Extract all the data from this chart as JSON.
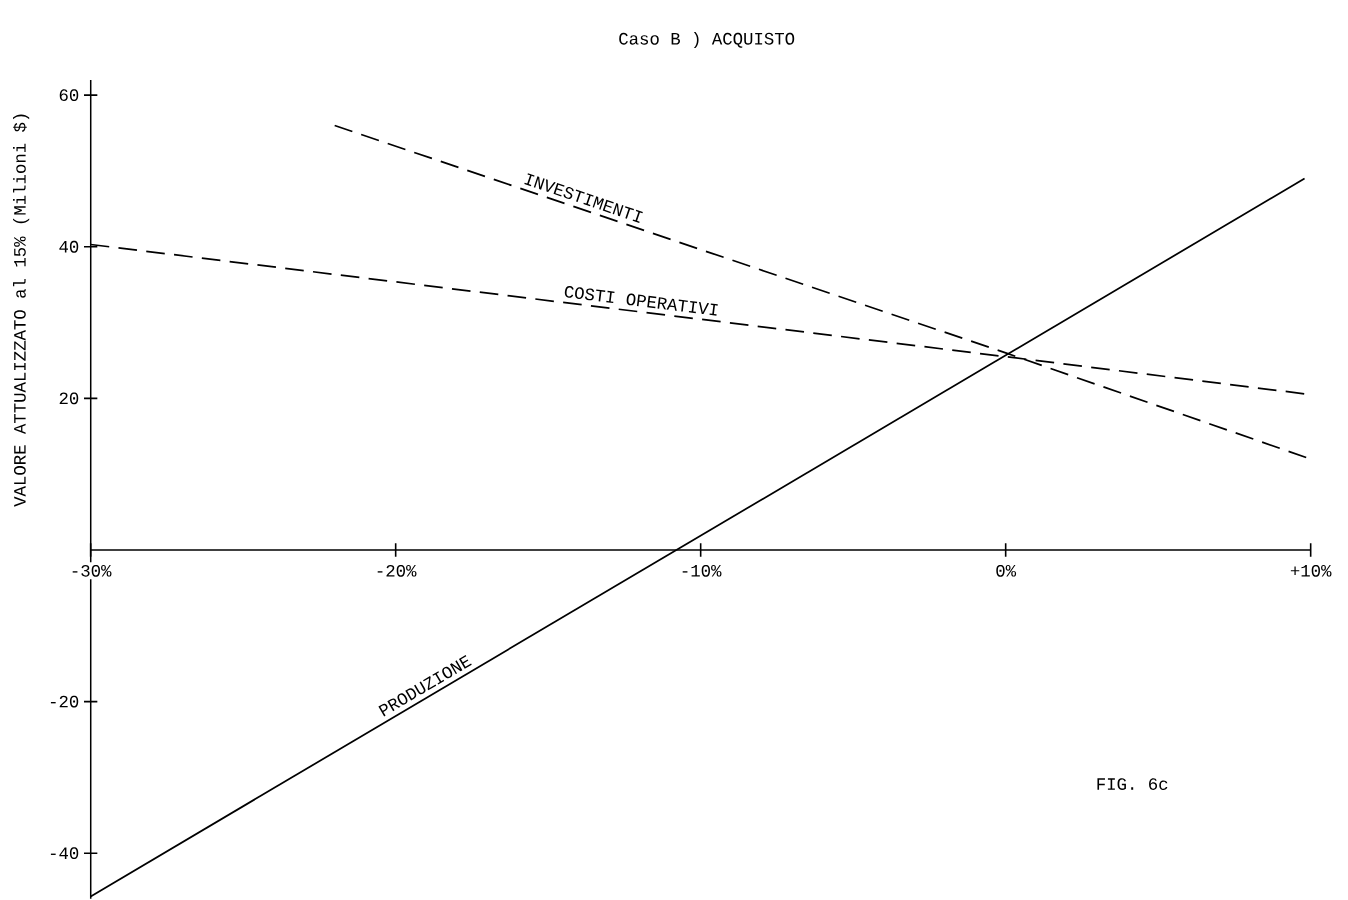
{
  "chart_data": {
    "type": "line",
    "title": "Caso B ) ACQUISTO",
    "ylabel": "VALORE ATTUALIZZATO al 15% (Milioni $)",
    "xlim": [
      -30,
      10
    ],
    "ylim": [
      -46,
      62
    ],
    "xticks": [
      {
        "value": -30,
        "label": "-30%"
      },
      {
        "value": -20,
        "label": "-20%"
      },
      {
        "value": -10,
        "label": "-10%"
      },
      {
        "value": 0,
        "label": "0%"
      },
      {
        "value": 10,
        "label": "+10%"
      }
    ],
    "yticks": [
      -40,
      -20,
      20,
      40,
      60
    ],
    "series": [
      {
        "name": "INVESTIMENTI",
        "color": "#000000",
        "line_style": "dashed",
        "x": [
          -22,
          0,
          10
        ],
        "values": [
          56,
          26,
          12
        ]
      },
      {
        "name": "COSTI OPERATIVI",
        "color": "#000000",
        "line_style": "dashed",
        "x": [
          -30,
          0,
          10
        ],
        "values": [
          40.3,
          25.5,
          20.5
        ]
      },
      {
        "name": "PRODUZIONE",
        "color": "#000000",
        "line_style": "solid",
        "x": [
          -30,
          9.8
        ],
        "values": [
          -45.7,
          49
        ]
      }
    ],
    "marker": "none",
    "grid": false,
    "annotations": [
      "FIG. 6c"
    ]
  }
}
